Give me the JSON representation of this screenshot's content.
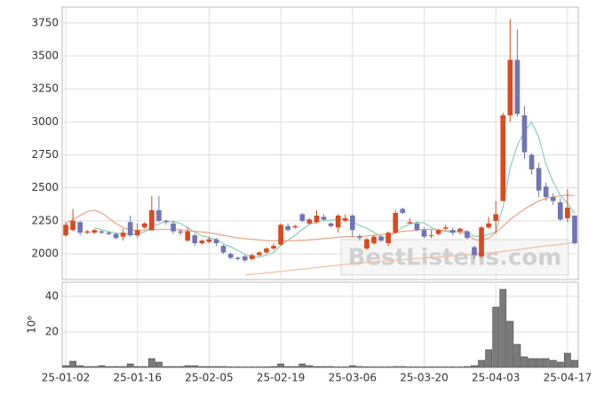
{
  "chart_data": {
    "type": "candlestick",
    "categories": [
      "25-01-02",
      null,
      null,
      null,
      null,
      null,
      null,
      null,
      null,
      null,
      "25-01-16",
      null,
      null,
      null,
      null,
      null,
      null,
      null,
      null,
      null,
      "25-02-05",
      null,
      null,
      null,
      null,
      null,
      null,
      null,
      null,
      null,
      "25-02-19",
      null,
      null,
      null,
      null,
      null,
      null,
      null,
      null,
      null,
      "25-03-06",
      null,
      null,
      null,
      null,
      null,
      null,
      null,
      null,
      null,
      "25-03-20",
      null,
      null,
      null,
      null,
      null,
      null,
      null,
      null,
      null,
      "25-04-03",
      null,
      null,
      null,
      null,
      null,
      null,
      null,
      null,
      null,
      "25-04-17",
      null
    ],
    "open": [
      2140,
      2180,
      2240,
      2160,
      2160,
      2170,
      2160,
      2150,
      2130,
      2240,
      2140,
      2200,
      2180,
      2330,
      2250,
      2230,
      2170,
      2100,
      2140,
      2080,
      2090,
      2110,
      2060,
      2000,
      1970,
      1980,
      1960,
      1990,
      2010,
      2040,
      2070,
      2210,
      2200,
      2300,
      2230,
      2240,
      2280,
      2230,
      2200,
      2250,
      2290,
      2130,
      2040,
      2080,
      2130,
      2080,
      2160,
      2340,
      2230,
      2230,
      2180,
      2140,
      2150,
      2190,
      2180,
      2170,
      2170,
      2050,
      1980,
      2200,
      2250,
      2400,
      3050,
      3470,
      3050,
      2750,
      2650,
      2510,
      2430,
      2390,
      2270,
      2290
    ],
    "high": [
      2240,
      2340,
      2250,
      2180,
      2190,
      2180,
      2170,
      2160,
      2190,
      2290,
      2230,
      2240,
      2440,
      2440,
      2260,
      2250,
      2190,
      2200,
      2150,
      2110,
      2130,
      2120,
      2070,
      2010,
      1980,
      1990,
      2000,
      2020,
      2050,
      2080,
      2230,
      2230,
      2220,
      2310,
      2270,
      2330,
      2300,
      2240,
      2300,
      2300,
      2300,
      2150,
      2120,
      2140,
      2140,
      2170,
      2330,
      2350,
      2270,
      2240,
      2200,
      2180,
      2190,
      2220,
      2200,
      2200,
      2180,
      2060,
      2210,
      2280,
      2400,
      3070,
      3780,
      3700,
      3120,
      2760,
      2690,
      2540,
      2460,
      2420,
      2490,
      2290
    ],
    "low": [
      2130,
      2170,
      2140,
      2150,
      2150,
      2150,
      2140,
      2110,
      2100,
      2130,
      2120,
      2190,
      2180,
      2240,
      2220,
      2150,
      2140,
      2090,
      2060,
      2070,
      2080,
      2060,
      2000,
      1960,
      1950,
      1940,
      1950,
      1980,
      2000,
      2030,
      2060,
      2170,
      2190,
      2240,
      2220,
      2230,
      2250,
      2200,
      2160,
      2240,
      2130,
      2100,
      2030,
      2070,
      2090,
      2060,
      2150,
      2300,
      2230,
      2170,
      2120,
      2120,
      2140,
      2180,
      2140,
      2150,
      2110,
      1960,
      1970,
      2190,
      2160,
      2400,
      3000,
      3040,
      2720,
      2600,
      2430,
      2400,
      2370,
      2250,
      2240,
      2070
    ],
    "close": [
      2220,
      2250,
      2160,
      2170,
      2180,
      2160,
      2150,
      2120,
      2160,
      2140,
      2180,
      2230,
      2330,
      2250,
      2240,
      2170,
      2160,
      2170,
      2080,
      2100,
      2110,
      2080,
      2010,
      1970,
      1960,
      1950,
      1990,
      2010,
      2040,
      2060,
      2220,
      2180,
      2210,
      2250,
      2260,
      2290,
      2260,
      2210,
      2290,
      2270,
      2180,
      2120,
      2110,
      2130,
      2100,
      2160,
      2310,
      2310,
      2240,
      2180,
      2130,
      2140,
      2180,
      2200,
      2160,
      2190,
      2120,
      1990,
      2200,
      2230,
      2300,
      3050,
      3470,
      3060,
      2770,
      2640,
      2480,
      2430,
      2400,
      2260,
      2350,
      2080
    ],
    "up_color": "#d94a1e",
    "down_color": "#7075b5",
    "ylim": [
      1805,
      3870
    ],
    "yticks": [
      2000,
      2250,
      2500,
      2750,
      3000,
      3250,
      3500,
      3750
    ],
    "grid": true,
    "watermark": "BestListens.com",
    "series": [
      {
        "color": "#8fd3c0",
        "values": [
          null,
          null,
          null,
          null,
          2196,
          2184,
          2168,
          2156,
          2154,
          2146,
          2150,
          2166,
          2208,
          2226,
          2246,
          2244,
          2230,
          2198,
          2164,
          2136,
          2124,
          2108,
          2076,
          2054,
          2026,
          1994,
          1976,
          1976,
          1990,
          2010,
          2064,
          2102,
          2142,
          2184,
          2224,
          2238,
          2254,
          2254,
          2262,
          2264,
          2242,
          2214,
          2194,
          2162,
          2128,
          2124,
          2162,
          2202,
          2224,
          2240,
          2234,
          2200,
          2174,
          2170,
          2162,
          2174,
          2170,
          2132,
          2132,
          2146,
          2168,
          2354,
          2650,
          2822,
          2930,
          2998,
          2884,
          2676,
          2544,
          2442,
          2384,
          2304
        ]
      },
      {
        "color": "#e8a98a",
        "values": [
          2230,
          2260,
          2290,
          2320,
          2330,
          2310,
          2270,
          2230,
          2200,
          2180,
          2175,
          2180,
          2180,
          2185,
          2185,
          2185,
          2180,
          2175,
          2170,
          2165,
          2160,
          2150,
          2140,
          2130,
          2120,
          2115,
          2110,
          2105,
          2100,
          2098,
          2100,
          2100,
          2100,
          2102,
          2105,
          2110,
          2115,
          2120,
          2125,
          2130,
          2130,
          2132,
          2135,
          2140,
          2145,
          2150,
          2160,
          2170,
          2175,
          2180,
          2185,
          2185,
          2180,
          2175,
          2170,
          2165,
          2150,
          2110,
          2100,
          2120,
          2160,
          2210,
          2260,
          2300,
          2340,
          2370,
          2400,
          2420,
          2430,
          2440,
          2445,
          2440
        ]
      },
      {
        "color": "#efc2a8",
        "values": [
          null,
          null,
          null,
          null,
          null,
          null,
          null,
          null,
          null,
          null,
          null,
          null,
          null,
          null,
          null,
          null,
          null,
          null,
          null,
          null,
          null,
          null,
          null,
          null,
          null,
          1840,
          1845,
          1850,
          1855,
          1860,
          1866,
          1872,
          1878,
          1884,
          1890,
          1896,
          1902,
          1908,
          1914,
          1920,
          1925,
          1930,
          1935,
          1940,
          1944,
          1948,
          1952,
          1956,
          1960,
          1964,
          1968,
          1972,
          1976,
          1980,
          1984,
          1988,
          1992,
          1996,
          2000,
          2006,
          2012,
          2018,
          2024,
          2030,
          2038,
          2046,
          2054,
          2060,
          2066,
          2072,
          2078,
          2084
        ]
      }
    ],
    "volume": {
      "type": "bar",
      "ylabel": "10⁶",
      "color": "#7a7a7a",
      "values": [
        1,
        3.5,
        1,
        0.5,
        0.5,
        1,
        0.5,
        0.5,
        0.5,
        2,
        0.5,
        0.5,
        5,
        3,
        0.5,
        0.5,
        0.5,
        1,
        1,
        0.5,
        0.5,
        0.5,
        0.5,
        0.3,
        0.3,
        0.3,
        0.3,
        0.3,
        0.3,
        0.5,
        2,
        0.5,
        0.5,
        2,
        1,
        0.5,
        0.5,
        0.5,
        0.3,
        0.3,
        1,
        0.5,
        0.3,
        0.3,
        0.3,
        0.3,
        0.5,
        0.5,
        0.3,
        0.3,
        0.3,
        0.3,
        0.3,
        0.3,
        0.3,
        0.3,
        0.5,
        1,
        4,
        10,
        34,
        44,
        26,
        13,
        6,
        5,
        5,
        5,
        4,
        3,
        8,
        4
      ],
      "ylim": [
        0,
        48
      ],
      "yticks": [
        20,
        40
      ]
    }
  }
}
